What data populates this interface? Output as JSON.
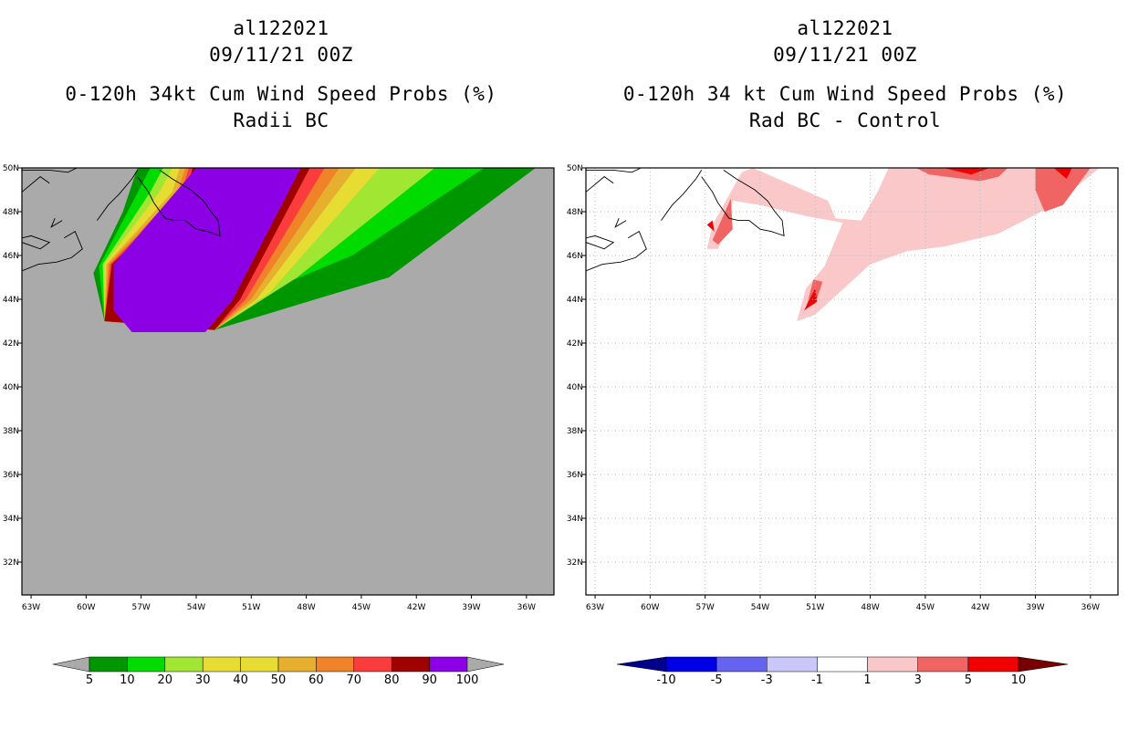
{
  "chart_data": [
    {
      "type": "contour-map",
      "title_lines": [
        "al122021",
        "09/11/21 00Z",
        "0-120h 34kt Cum Wind Speed Probs (%)",
        "Radii BC"
      ],
      "xlabel": "",
      "ylabel": "",
      "xticks": [
        "63W",
        "60W",
        "57W",
        "54W",
        "51W",
        "48W",
        "45W",
        "42W",
        "39W",
        "36W"
      ],
      "yticks": [
        "50N",
        "48N",
        "46N",
        "44N",
        "42N",
        "40N",
        "38N",
        "36N",
        "34N",
        "32N"
      ],
      "lon_range": [
        -63.5,
        -34.5
      ],
      "lat_range": [
        30.5,
        50.0
      ],
      "background_color": "#aaaaaa",
      "colorbar": {
        "labels": [
          "5",
          "10",
          "20",
          "30",
          "40",
          "50",
          "60",
          "70",
          "80",
          "90",
          "100"
        ],
        "colors": [
          "#009600",
          "#00dc00",
          "#a0e632",
          "#e6dc32",
          "#e6dc32",
          "#e6af2d",
          "#f08228",
          "#fa3c3c",
          "#a00000",
          "#8c00e6"
        ],
        "under_color": "#aaaaaa",
        "over_color": "#aaaaaa"
      },
      "regions": [
        {
          "level": "5-10",
          "color": "#009600",
          "points": [
            [
              -59.6,
              45.2
            ],
            [
              -58.0,
              48.0
            ],
            [
              -57.2,
              50.0
            ],
            [
              -35.5,
              50.0
            ],
            [
              -43.5,
              45.0
            ],
            [
              -47.5,
              44.0
            ],
            [
              -53.0,
              42.6
            ],
            [
              -59.0,
              43.0
            ]
          ]
        },
        {
          "level": "10-20",
          "color": "#00dc00",
          "points": [
            [
              -59.3,
              45.5
            ],
            [
              -57.3,
              48.7
            ],
            [
              -56.5,
              50.0
            ],
            [
              -38.3,
              50.0
            ],
            [
              -45.5,
              46.0
            ],
            [
              -49.5,
              44.6
            ],
            [
              -53.0,
              42.6
            ],
            [
              -59.0,
              43.0
            ]
          ]
        },
        {
          "level": "20-30",
          "color": "#a0e632",
          "points": [
            [
              -59.1,
              45.6
            ],
            [
              -56.5,
              48.9
            ],
            [
              -55.8,
              50.0
            ],
            [
              -41.0,
              50.0
            ],
            [
              -48.5,
              45.0
            ],
            [
              -53.0,
              42.6
            ],
            [
              -59.0,
              43.0
            ]
          ]
        },
        {
          "level": "30-50",
          "color": "#e6dc32",
          "points": [
            [
              -59.0,
              45.6
            ],
            [
              -56.0,
              48.9
            ],
            [
              -55.3,
              50.0
            ],
            [
              -44.0,
              50.0
            ],
            [
              -50.0,
              44.3
            ],
            [
              -53.0,
              42.6
            ],
            [
              -59.0,
              43.0
            ]
          ]
        },
        {
          "level": "50-60",
          "color": "#e6af2d",
          "points": [
            [
              -58.9,
              45.6
            ],
            [
              -55.3,
              48.9
            ],
            [
              -54.9,
              50.0
            ],
            [
              -45.3,
              50.0
            ],
            [
              -50.7,
              44.0
            ],
            [
              -53.0,
              42.6
            ],
            [
              -59.0,
              43.0
            ]
          ]
        },
        {
          "level": "60-70",
          "color": "#f08228",
          "points": [
            [
              -58.8,
              45.6
            ],
            [
              -55.0,
              48.9
            ],
            [
              -54.6,
              50.0
            ],
            [
              -46.2,
              50.0
            ],
            [
              -51.0,
              44.0
            ],
            [
              -53.0,
              42.6
            ],
            [
              -59.0,
              43.0
            ]
          ]
        },
        {
          "level": "70-80",
          "color": "#fa3c3c",
          "points": [
            [
              -58.7,
              45.6
            ],
            [
              -54.8,
              48.9
            ],
            [
              -54.4,
              50.0
            ],
            [
              -47.0,
              50.0
            ],
            [
              -51.3,
              44.0
            ],
            [
              -53.0,
              42.6
            ],
            [
              -59.0,
              43.0
            ]
          ]
        },
        {
          "level": "80-90",
          "color": "#a00000",
          "points": [
            [
              -58.6,
              45.6
            ],
            [
              -54.5,
              48.9
            ],
            [
              -54.2,
              50.0
            ],
            [
              -47.8,
              50.0
            ],
            [
              -51.6,
              44.0
            ],
            [
              -53.0,
              42.6
            ],
            [
              -59.0,
              43.0
            ]
          ]
        },
        {
          "level": "90-100",
          "color": "#8c00e6",
          "points": [
            [
              -58.5,
              45.6
            ],
            [
              -54.5,
              49.5
            ],
            [
              -54.0,
              50.0
            ],
            [
              -48.3,
              50.0
            ],
            [
              -52.0,
              44.0
            ],
            [
              -53.5,
              42.5
            ],
            [
              -55.5,
              42.5
            ],
            [
              -57.5,
              42.5
            ],
            [
              -58.5,
              43.5
            ]
          ]
        }
      ]
    },
    {
      "type": "contour-map",
      "title_lines": [
        "al122021",
        "09/11/21 00Z",
        "0-120h 34 kt Cum Wind Speed Probs (%)",
        "Rad BC - Control"
      ],
      "xlabel": "",
      "ylabel": "",
      "xticks": [
        "63W",
        "60W",
        "57W",
        "54W",
        "51W",
        "48W",
        "45W",
        "42W",
        "39W",
        "36W"
      ],
      "yticks": [
        "50N",
        "48N",
        "46N",
        "44N",
        "42N",
        "40N",
        "38N",
        "36N",
        "34N",
        "32N"
      ],
      "lon_range": [
        -63.5,
        -34.5
      ],
      "lat_range": [
        30.5,
        50.0
      ],
      "background_color": "#ffffff",
      "colorbar": {
        "labels": [
          "-10",
          "-5",
          "-3",
          "-1",
          "1",
          "3",
          "5",
          "10"
        ],
        "colors": [
          "#0000e6",
          "#6464f0",
          "#c8c8fa",
          "#ffffff",
          "#fac8c8",
          "#f06464",
          "#f00000"
        ],
        "under_color": "#00008c",
        "over_color": "#780000"
      },
      "regions": [
        {
          "level": "1-3",
          "color": "#fac8c8",
          "points": [
            [
              -56.9,
              46.3
            ],
            [
              -56.6,
              47.4
            ],
            [
              -55.0,
              49.8
            ],
            [
              -54.4,
              50.0
            ],
            [
              -50.3,
              48.5
            ],
            [
              -49.9,
              47.7
            ],
            [
              -48.5,
              47.6
            ],
            [
              -47.6,
              48.9
            ],
            [
              -47.0,
              50.0
            ],
            [
              -35.5,
              50.0
            ],
            [
              -38.0,
              48.3
            ],
            [
              -41.0,
              47.0
            ],
            [
              -44.0,
              46.4
            ],
            [
              -46.0,
              46.2
            ],
            [
              -48.0,
              45.6
            ],
            [
              -51.0,
              43.3
            ],
            [
              -52.0,
              43.0
            ],
            [
              -51.5,
              44.5
            ],
            [
              -50.5,
              45.5
            ],
            [
              -49.5,
              47.5
            ],
            [
              -51.5,
              47.8
            ],
            [
              -54.0,
              48.3
            ],
            [
              -55.5,
              48.5
            ],
            [
              -55.7,
              47.4
            ],
            [
              -56.3,
              46.3
            ]
          ]
        },
        {
          "level": "3-5",
          "color": "#f06464",
          "points": [
            [
              -56.6,
              46.7
            ],
            [
              -55.6,
              48.6
            ],
            [
              -55.5,
              47.2
            ],
            [
              -56.3,
              46.5
            ]
          ]
        },
        {
          "level": "3-5",
          "color": "#f06464",
          "points": [
            [
              -51.5,
              43.6
            ],
            [
              -51.1,
              44.9
            ],
            [
              -50.6,
              44.8
            ],
            [
              -51.0,
              43.8
            ]
          ]
        },
        {
          "level": "3-5",
          "color": "#f06464",
          "points": [
            [
              -45.5,
              50.0
            ],
            [
              -44.8,
              49.7
            ],
            [
              -42.0,
              49.4
            ],
            [
              -41.0,
              49.6
            ],
            [
              -40.5,
              50.0
            ]
          ]
        },
        {
          "level": "3-5",
          "color": "#f06464",
          "points": [
            [
              -39.0,
              49.0
            ],
            [
              -38.5,
              48.0
            ],
            [
              -37.5,
              48.3
            ],
            [
              -36.0,
              50.0
            ],
            [
              -39.0,
              50.0
            ]
          ]
        },
        {
          "level": "5-10",
          "color": "#f00000",
          "points": [
            [
              -51.6,
              43.5
            ],
            [
              -51.0,
              44.5
            ],
            [
              -50.9,
              43.9
            ]
          ]
        },
        {
          "level": "5-10",
          "color": "#f00000",
          "points": [
            [
              -56.9,
              47.4
            ],
            [
              -56.5,
              47.1
            ],
            [
              -56.6,
              47.6
            ]
          ]
        },
        {
          "level": "5-10",
          "color": "#f00000",
          "points": [
            [
              -44.0,
              50.0
            ],
            [
              -42.5,
              49.7
            ],
            [
              -41.5,
              50.0
            ]
          ]
        },
        {
          "level": "5-10",
          "color": "#f00000",
          "points": [
            [
              -38.0,
              50.0
            ],
            [
              -37.3,
              49.5
            ],
            [
              -37.0,
              50.0
            ]
          ]
        }
      ]
    }
  ]
}
